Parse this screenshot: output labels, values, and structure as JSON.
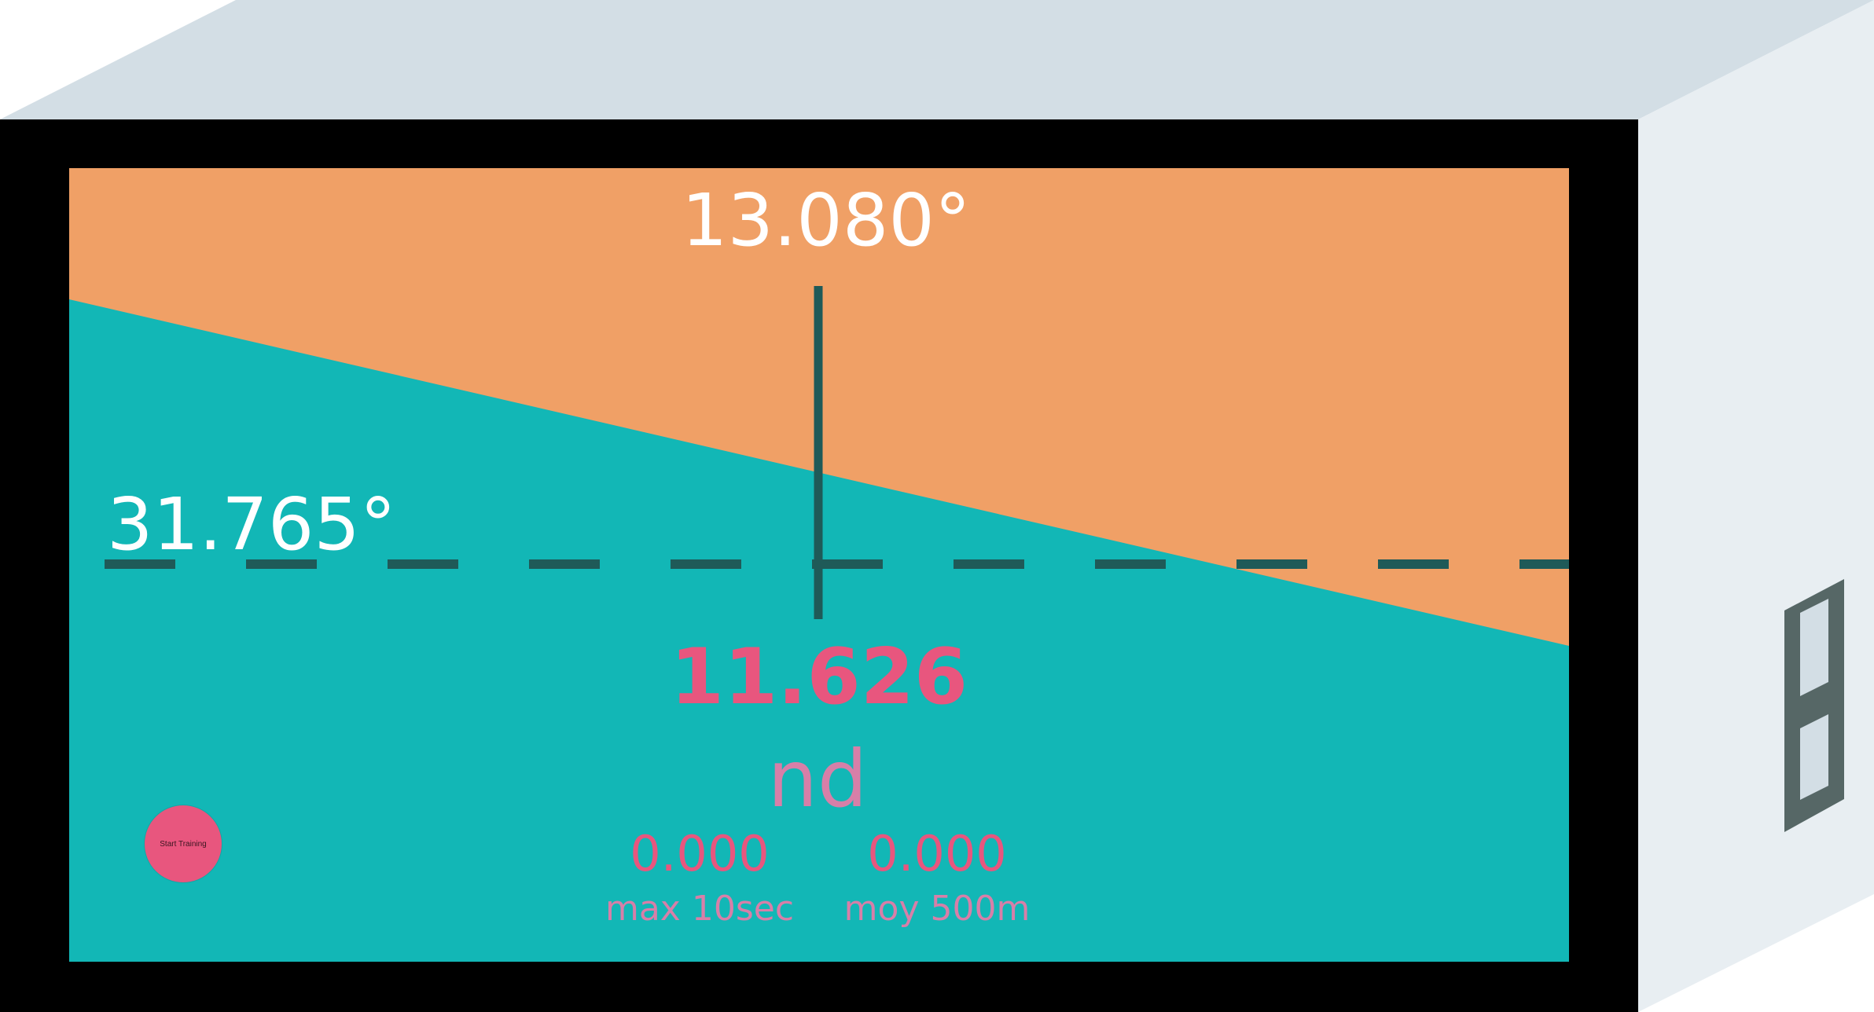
{
  "readouts": {
    "pitch_angle": "13.080°",
    "roll_angle": "31.765°",
    "main_value": "11.626",
    "main_unit": "nd"
  },
  "stats": {
    "max_value": "0.000",
    "max_label": "max 10sec",
    "avg_value": "0.000",
    "avg_label": "moy 500m"
  },
  "controls": {
    "start_button_label": "Start Training"
  },
  "colors": {
    "sky": "#f0a066",
    "ground": "#12b7b6",
    "reticle": "#1f5a58",
    "bezel": "#000000",
    "case_top": "#d3dee5",
    "case_side": "#e8eef2",
    "accent_pink": "#e8567e",
    "muted_pink": "#d77fa8"
  },
  "icons": {
    "battery": "battery-icon",
    "horizon": "artificial-horizon"
  }
}
